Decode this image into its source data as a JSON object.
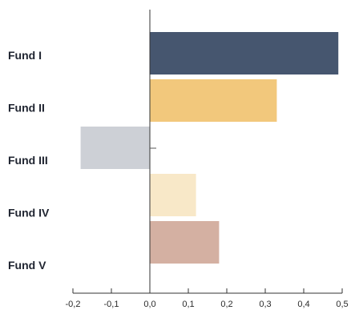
{
  "chart_data": {
    "type": "bar",
    "orientation": "horizontal",
    "categories": [
      "Fund I",
      "Fund II",
      "Fund III",
      "Fund IV",
      "Fund V"
    ],
    "values": [
      0.49,
      0.33,
      -0.18,
      0.12,
      0.18
    ],
    "colors": [
      "#46566f",
      "#f2c87c",
      "#cdd0d6",
      "#f8e8c8",
      "#d4b0a2"
    ],
    "xlim": [
      -0.2,
      0.5
    ],
    "xticks": [
      "-0,2",
      "-0,1",
      "0,0",
      "0,1",
      "0,2",
      "0,3",
      "0,4",
      "0,5"
    ],
    "grid": false,
    "title": "",
    "xlabel": "",
    "ylabel": ""
  }
}
